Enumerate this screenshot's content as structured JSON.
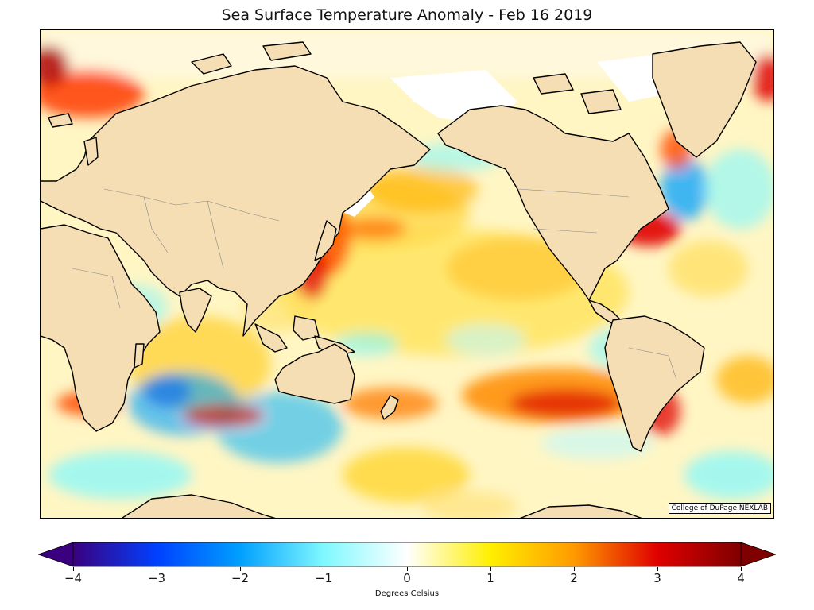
{
  "title": "Sea Surface Temperature Anomaly - Feb 16 2019",
  "credit": "College of DuPage NEXLAB",
  "colorbar": {
    "label": "Degrees Celsius",
    "min": -4,
    "max": 4,
    "ticks": [
      "−4",
      "−3",
      "−2",
      "−1",
      "0",
      "1",
      "2",
      "3",
      "4"
    ],
    "colors": [
      "#3a007f",
      "#0040ff",
      "#00a0ff",
      "#7ff8ff",
      "#ffffff",
      "#ffef00",
      "#ff9a00",
      "#e00000",
      "#7f0000"
    ]
  },
  "colors": {
    "land": "#f5deb3",
    "ice": "#ffffff",
    "warm": "#ffd700",
    "hot": "#e00000",
    "cold": "#00b4ff"
  }
}
